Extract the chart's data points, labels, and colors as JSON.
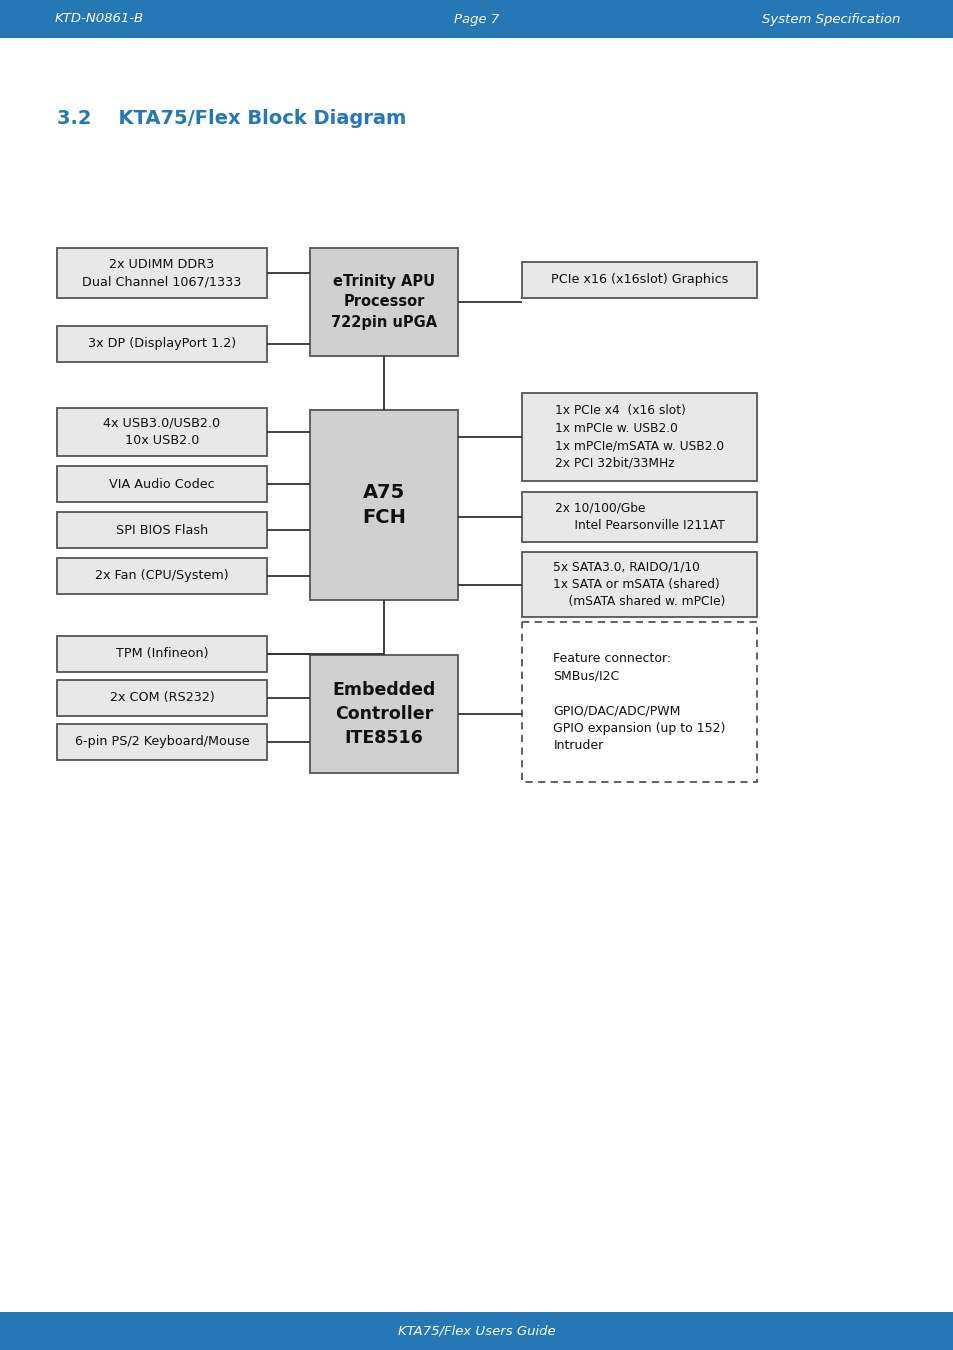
{
  "header_color": "#2577b5",
  "header_text_color": "#ffffff",
  "header_left": "KTD-N0861-B",
  "header_center": "Page 7",
  "header_right": "System Specification",
  "footer_text": "KTA75/Flex Users Guide",
  "footer_color": "#2577b5",
  "section_title": "3.2    KTA75/Flex Block Diagram",
  "section_title_color": "#2577b5",
  "bg_color": "#ffffff",
  "box_bg": "#e8e8e8",
  "box_border": "#555555",
  "center_box_bg": "#d0d0d0",
  "line_color": "#333333"
}
